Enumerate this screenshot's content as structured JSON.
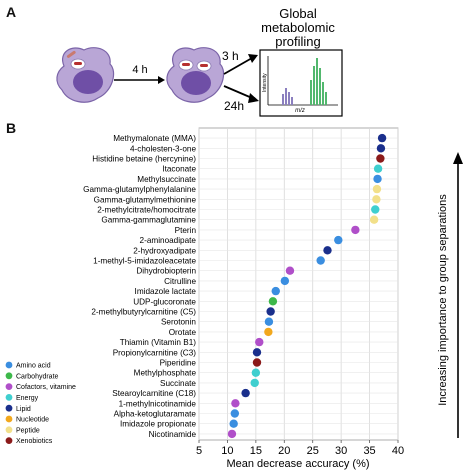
{
  "panel_a": {
    "label": "A",
    "step1_time": "4 h",
    "branch1_time": "3 h",
    "branch2_time": "24h",
    "profiling_title_line1": "Global",
    "profiling_title_line2": "metabolomic",
    "profiling_title_line3": "profiling",
    "spectrum_ylabel": "Intensity",
    "spectrum_xlabel": "m/z"
  },
  "panel_b": {
    "label": "B",
    "right_arrow_label": "Increasing importance to group separations"
  },
  "legend": [
    {
      "name": "Amino acid",
      "color": "#3a8ee0"
    },
    {
      "name": "Carbohydrate",
      "color": "#3db84a"
    },
    {
      "name": "Cofactors, vitamine",
      "color": "#b04fc9"
    },
    {
      "name": "Energy",
      "color": "#3fcfcf"
    },
    {
      "name": "Lipid",
      "color": "#1a2f8c"
    },
    {
      "name": "Nucleotide",
      "color": "#f2a81d"
    },
    {
      "name": "Peptide",
      "color": "#f2e08a"
    },
    {
      "name": "Xenobiotics",
      "color": "#8b1a1a"
    }
  ],
  "chart_data": {
    "type": "scatter",
    "xlabel": "Mean decrease accuracy (%)",
    "xlim": [
      5,
      40
    ],
    "xticks": [
      5,
      10,
      15,
      20,
      25,
      30,
      35,
      40
    ],
    "grid": true,
    "points": [
      {
        "name": "Methymalonate (MMA)",
        "value": 37.2,
        "category": "Lipid"
      },
      {
        "name": "4-cholesten-3-one",
        "value": 37.0,
        "category": "Lipid"
      },
      {
        "name": "Histidine betaine (hercynine)",
        "value": 36.9,
        "category": "Xenobiotics"
      },
      {
        "name": "Itaconate",
        "value": 36.5,
        "category": "Energy"
      },
      {
        "name": "Methylsuccinate",
        "value": 36.4,
        "category": "Amino acid"
      },
      {
        "name": "Gamma-glutamylphenylalanine",
        "value": 36.3,
        "category": "Peptide"
      },
      {
        "name": "Gamma-glutamylmethionine",
        "value": 36.2,
        "category": "Peptide"
      },
      {
        "name": "2-methylcitrate/homocitrate",
        "value": 36.0,
        "category": "Energy"
      },
      {
        "name": "Gamma-gammaglutamine",
        "value": 35.8,
        "category": "Peptide"
      },
      {
        "name": "Pterin",
        "value": 32.5,
        "category": "Cofactors, vitamine"
      },
      {
        "name": "2-aminoadipate",
        "value": 29.5,
        "category": "Amino acid"
      },
      {
        "name": "2-hydroxyadipate",
        "value": 27.6,
        "category": "Lipid"
      },
      {
        "name": "1-methyl-5-imidazoleacetate",
        "value": 26.4,
        "category": "Amino acid"
      },
      {
        "name": "Dihydrobiopterin",
        "value": 21.0,
        "category": "Cofactors, vitamine"
      },
      {
        "name": "Citrulline",
        "value": 20.1,
        "category": "Amino acid"
      },
      {
        "name": "Imidazole lactate",
        "value": 18.5,
        "category": "Amino acid"
      },
      {
        "name": "UDP-glucoronate",
        "value": 18.0,
        "category": "Carbohydrate"
      },
      {
        "name": "2-methylbutyrylcarnitine (C5)",
        "value": 17.6,
        "category": "Lipid"
      },
      {
        "name": "Serotonin",
        "value": 17.3,
        "category": "Amino acid"
      },
      {
        "name": "Orotate",
        "value": 17.2,
        "category": "Nucleotide"
      },
      {
        "name": "Thiamin (Vitamin B1)",
        "value": 15.6,
        "category": "Cofactors, vitamine"
      },
      {
        "name": "Propionylcarnitine (C3)",
        "value": 15.2,
        "category": "Lipid"
      },
      {
        "name": "Piperidine",
        "value": 15.2,
        "category": "Xenobiotics"
      },
      {
        "name": "Methylphosphate",
        "value": 15.0,
        "category": "Energy"
      },
      {
        "name": "Succinate",
        "value": 14.8,
        "category": "Energy"
      },
      {
        "name": "Stearoylcarnitine (C18)",
        "value": 13.2,
        "category": "Lipid"
      },
      {
        "name": "1-methylnicotinamide",
        "value": 11.4,
        "category": "Cofactors, vitamine"
      },
      {
        "name": "Alpha-ketoglutaramate",
        "value": 11.3,
        "category": "Amino acid"
      },
      {
        "name": "Imidazole propionate",
        "value": 11.1,
        "category": "Amino acid"
      },
      {
        "name": "Nicotinamide",
        "value": 10.8,
        "category": "Cofactors, vitamine"
      }
    ]
  }
}
